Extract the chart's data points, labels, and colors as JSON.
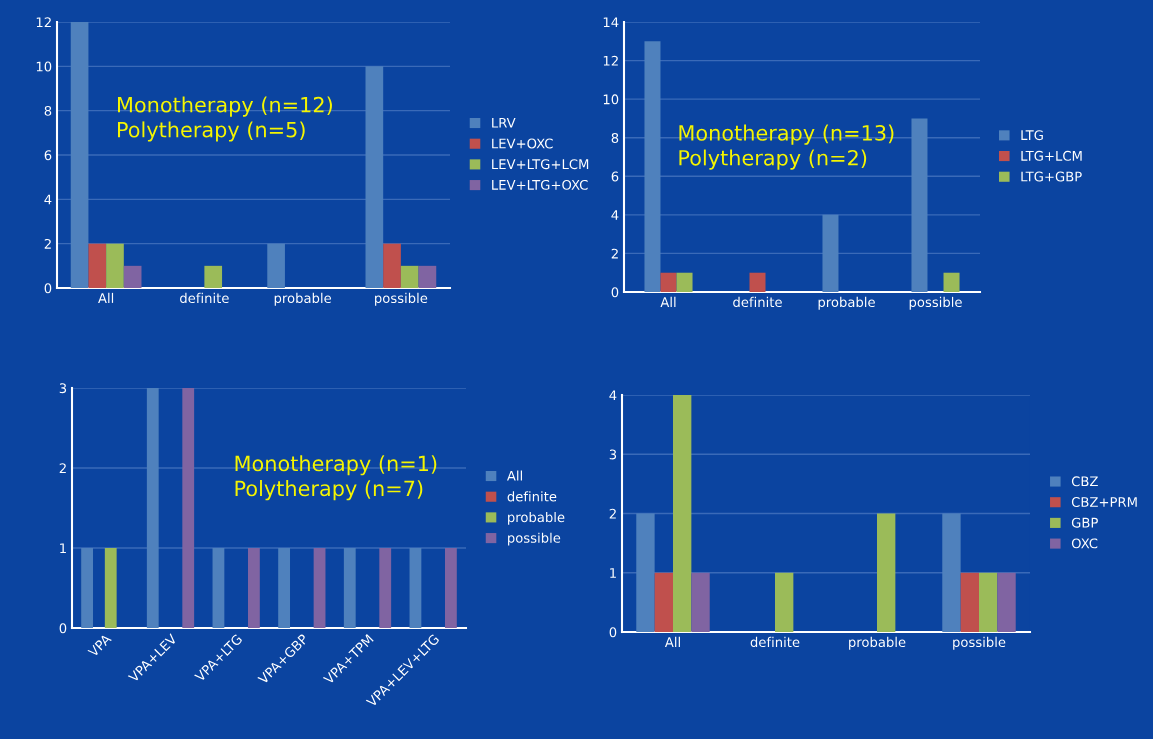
{
  "chart_data": [
    {
      "type": "bar",
      "categories": [
        "All",
        "definite",
        "probable",
        "possible"
      ],
      "series": [
        {
          "name": "LRV",
          "color": "#4f81bd",
          "values": [
            12,
            0,
            2,
            10
          ]
        },
        {
          "name": "LEV+OXC",
          "color": "#c0504d",
          "values": [
            2,
            0,
            0,
            2
          ]
        },
        {
          "name": "LEV+LTG+LCM",
          "color": "#9bbb59",
          "values": [
            2,
            1,
            0,
            1
          ]
        },
        {
          "name": "LEV+LTG+OXC",
          "color": "#8064a2",
          "values": [
            1,
            0,
            0,
            1
          ]
        }
      ],
      "ylim": [
        0,
        12
      ],
      "yticks": [
        0,
        2,
        4,
        6,
        8,
        10,
        12
      ],
      "grid": "y",
      "legend": "right",
      "annotations": [
        "Monotherapy (n=12)\nPolytherapy (n=5)"
      ]
    },
    {
      "type": "bar",
      "categories": [
        "All",
        "definite",
        "probable",
        "possible"
      ],
      "series": [
        {
          "name": "LTG",
          "color": "#4f81bd",
          "values": [
            13,
            0,
            4,
            9
          ]
        },
        {
          "name": "LTG+LCM",
          "color": "#c0504d",
          "values": [
            1,
            1,
            0,
            0
          ]
        },
        {
          "name": "LTG+GBP",
          "color": "#9bbb59",
          "values": [
            1,
            0,
            0,
            1
          ]
        }
      ],
      "ylim": [
        0,
        14
      ],
      "yticks": [
        0,
        2,
        4,
        6,
        8,
        10,
        12,
        14
      ],
      "grid": "y",
      "legend": "right",
      "annotations": [
        "Monotherapy (n=13)\nPolytherapy (n=2)"
      ]
    },
    {
      "type": "bar",
      "categories": [
        "VPA",
        "VPA+LEV",
        "VPA+LTG",
        "VPA+GBP",
        "VPA+TPM",
        "VPA+LEV+LTG"
      ],
      "series": [
        {
          "name": "All",
          "color": "#4f81bd",
          "values": [
            1,
            3,
            1,
            1,
            1,
            1
          ]
        },
        {
          "name": "definite",
          "color": "#c0504d",
          "values": [
            0,
            0,
            0,
            0,
            0,
            0
          ]
        },
        {
          "name": "probable",
          "color": "#9bbb59",
          "values": [
            1,
            0,
            0,
            0,
            0,
            0
          ]
        },
        {
          "name": "possible",
          "color": "#8064a2",
          "values": [
            0,
            3,
            1,
            1,
            1,
            1
          ]
        }
      ],
      "ylim": [
        0,
        3
      ],
      "yticks": [
        0,
        1,
        2,
        3
      ],
      "grid": "y",
      "legend": "right",
      "annotations": [
        "Monotherapy (n=1)\nPolytherapy (n=7)"
      ]
    },
    {
      "type": "bar",
      "categories": [
        "All",
        "definite",
        "probable",
        "possible"
      ],
      "series": [
        {
          "name": "CBZ",
          "color": "#4f81bd",
          "values": [
            2,
            0,
            0,
            2
          ]
        },
        {
          "name": "CBZ+PRM",
          "color": "#c0504d",
          "values": [
            1,
            0,
            0,
            1
          ]
        },
        {
          "name": "GBP",
          "color": "#9bbb59",
          "values": [
            4,
            1,
            2,
            1
          ]
        },
        {
          "name": "OXC",
          "color": "#8064a2",
          "values": [
            1,
            0,
            0,
            1
          ]
        }
      ],
      "ylim": [
        0,
        4
      ],
      "yticks": [
        0,
        1,
        2,
        3,
        4
      ],
      "grid": "y",
      "legend": "right"
    }
  ]
}
